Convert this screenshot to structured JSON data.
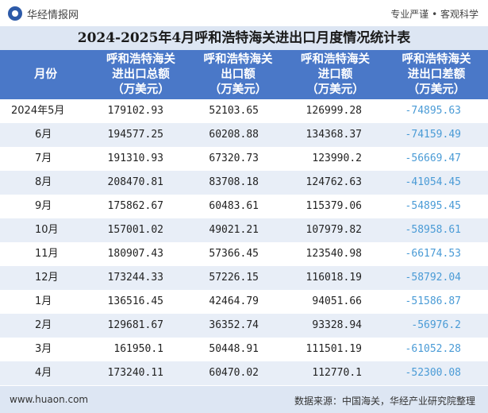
{
  "brand": {
    "name": "华经情报网",
    "slogan": "专业严谨 • 客观科学"
  },
  "title": "2024-2025年4月呼和浩特海关进出口月度情况统计表",
  "headers": {
    "month": "月份",
    "total": [
      "呼和浩特海关",
      "进出口总额",
      "（万美元）"
    ],
    "export": [
      "呼和浩特海关",
      "出口额",
      "（万美元）"
    ],
    "import": [
      "呼和浩特海关",
      "进口额",
      "（万美元）"
    ],
    "balance": [
      "呼和浩特海关",
      "进出口差额",
      "（万美元）"
    ]
  },
  "rows": [
    {
      "month": "2024年5月",
      "total": "179102.93",
      "export": "52103.65",
      "import": "126999.28",
      "balance": "-74895.63"
    },
    {
      "month": "6月",
      "total": "194577.25",
      "export": "60208.88",
      "import": "134368.37",
      "balance": "-74159.49"
    },
    {
      "month": "7月",
      "total": "191310.93",
      "export": "67320.73",
      "import": "123990.2",
      "balance": "-56669.47"
    },
    {
      "month": "8月",
      "total": "208470.81",
      "export": "83708.18",
      "import": "124762.63",
      "balance": "-41054.45"
    },
    {
      "month": "9月",
      "total": "175862.67",
      "export": "60483.61",
      "import": "115379.06",
      "balance": "-54895.45"
    },
    {
      "month": "10月",
      "total": "157001.02",
      "export": "49021.21",
      "import": "107979.82",
      "balance": "-58958.61"
    },
    {
      "month": "11月",
      "total": "180907.43",
      "export": "57366.45",
      "import": "123540.98",
      "balance": "-66174.53"
    },
    {
      "month": "12月",
      "total": "173244.33",
      "export": "57226.15",
      "import": "116018.19",
      "balance": "-58792.04"
    },
    {
      "month": "1月",
      "total": "136516.45",
      "export": "42464.79",
      "import": "94051.66",
      "balance": "-51586.87"
    },
    {
      "month": "2月",
      "total": "129681.67",
      "export": "36352.74",
      "import": "93328.94",
      "balance": "-56976.2"
    },
    {
      "month": "3月",
      "total": "161950.1",
      "export": "50448.91",
      "import": "111501.19",
      "balance": "-61052.28"
    },
    {
      "month": "4月",
      "total": "173240.11",
      "export": "60470.02",
      "import": "112770.1",
      "balance": "-52300.08"
    }
  ],
  "footer": {
    "website": "www.huaon.com",
    "source": "数据来源：中国海关，华经产业研究院整理"
  },
  "colors": {
    "header_bg": "#4a78c8",
    "title_bg": "#dde6f3",
    "row_alt": "#e8eef7",
    "negative": "#4a9bd6"
  },
  "icons": {
    "logo": "huajing-logo-icon"
  }
}
